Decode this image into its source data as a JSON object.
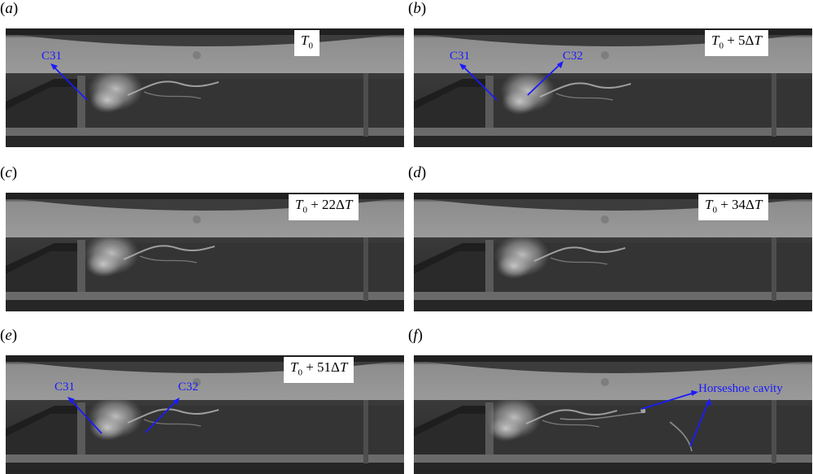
{
  "panels": [
    {
      "label": "(a)",
      "time_var": "T",
      "time_sub": "0",
      "time_rest": ""
    },
    {
      "label": "(b)",
      "time_var": "T",
      "time_sub": "0",
      "time_rest": " + 5ΔT"
    },
    {
      "label": "(c)",
      "time_var": "T",
      "time_sub": "0",
      "time_rest": " + 22ΔT"
    },
    {
      "label": "(d)",
      "time_var": "T",
      "time_sub": "0",
      "time_rest": " + 34ΔT"
    },
    {
      "label": "(e)",
      "time_var": "T",
      "time_sub": "0",
      "time_rest": " + 51ΔT"
    },
    {
      "label": "(f)",
      "time_var": "",
      "time_sub": "",
      "time_rest": ""
    }
  ],
  "annotations": {
    "a": [
      "C31"
    ],
    "b": [
      "C31",
      "C32"
    ],
    "e": [
      "C31",
      "C32"
    ],
    "f": [
      "Horseshoe cavity"
    ]
  },
  "colors": {
    "annotation": "#1a1aff",
    "background": "#ffffff"
  }
}
